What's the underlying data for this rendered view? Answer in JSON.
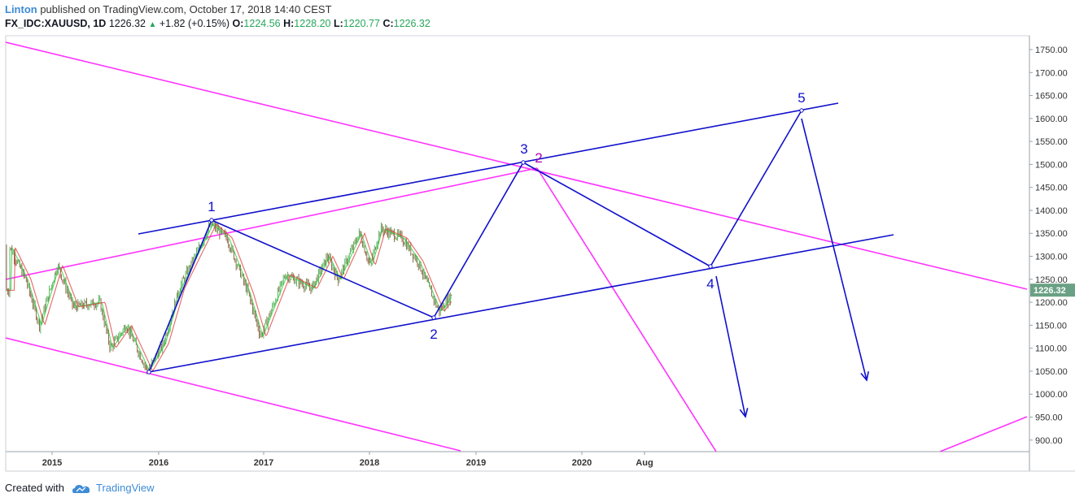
{
  "header": {
    "author": "Linton",
    "published_text": " published on TradingView.com, October 17, 2018 14:40 CEST",
    "symbol": "FX_IDC:XAUUSD, 1D",
    "last": "1226.32",
    "change": "+1.82 (+0.15%)",
    "o_label": "O:",
    "o_value": "1224.56",
    "h_label": "H:",
    "h_value": "1228.20",
    "l_label": "L:",
    "l_value": "1220.77",
    "c_label": "C:",
    "c_value": "1226.32"
  },
  "footer": {
    "created_with": "Created with",
    "brand": "TradingView"
  },
  "colors": {
    "magenta": "#ff33ff",
    "blue": "#1010cc",
    "candle_up": "#4caf50",
    "candle_down": "#8a5a3c",
    "ma_red": "#e04040",
    "ma_green": "#2ecc40",
    "price_badge": "#6aa084"
  },
  "chart_data": {
    "type": "candlestick",
    "symbol": "FX_IDC:XAUUSD",
    "interval": "1D",
    "last_price": "1226.32",
    "y_ticks": [
      "1750.00",
      "1700.00",
      "1650.00",
      "1600.00",
      "1550.00",
      "1500.00",
      "1450.00",
      "1400.00",
      "1350.00",
      "1300.00",
      "1250.00",
      "1200.00",
      "1150.00",
      "1100.00",
      "1050.00",
      "1000.00",
      "950.00",
      "900.00"
    ],
    "x_ticks": [
      "2015",
      "2016",
      "2017",
      "2018",
      "2019",
      "2020",
      "Aug"
    ],
    "price_path_approx": [
      [
        2014.6,
        1320
      ],
      [
        2014.75,
        1250
      ],
      [
        2014.88,
        1150
      ],
      [
        2015.05,
        1280
      ],
      [
        2015.2,
        1190
      ],
      [
        2015.45,
        1200
      ],
      [
        2015.55,
        1100
      ],
      [
        2015.7,
        1150
      ],
      [
        2015.9,
        1050
      ],
      [
        2016.05,
        1110
      ],
      [
        2016.2,
        1230
      ],
      [
        2016.5,
        1370
      ],
      [
        2016.65,
        1340
      ],
      [
        2016.85,
        1220
      ],
      [
        2016.97,
        1125
      ],
      [
        2017.2,
        1260
      ],
      [
        2017.45,
        1230
      ],
      [
        2017.6,
        1300
      ],
      [
        2017.7,
        1250
      ],
      [
        2017.9,
        1350
      ],
      [
        2018.0,
        1280
      ],
      [
        2018.1,
        1360
      ],
      [
        2018.3,
        1340
      ],
      [
        2018.45,
        1290
      ],
      [
        2018.65,
        1180
      ],
      [
        2018.8,
        1226
      ]
    ],
    "wave_labels": [
      "1",
      "2",
      "3",
      "4",
      "5"
    ],
    "magenta_label": "2"
  }
}
